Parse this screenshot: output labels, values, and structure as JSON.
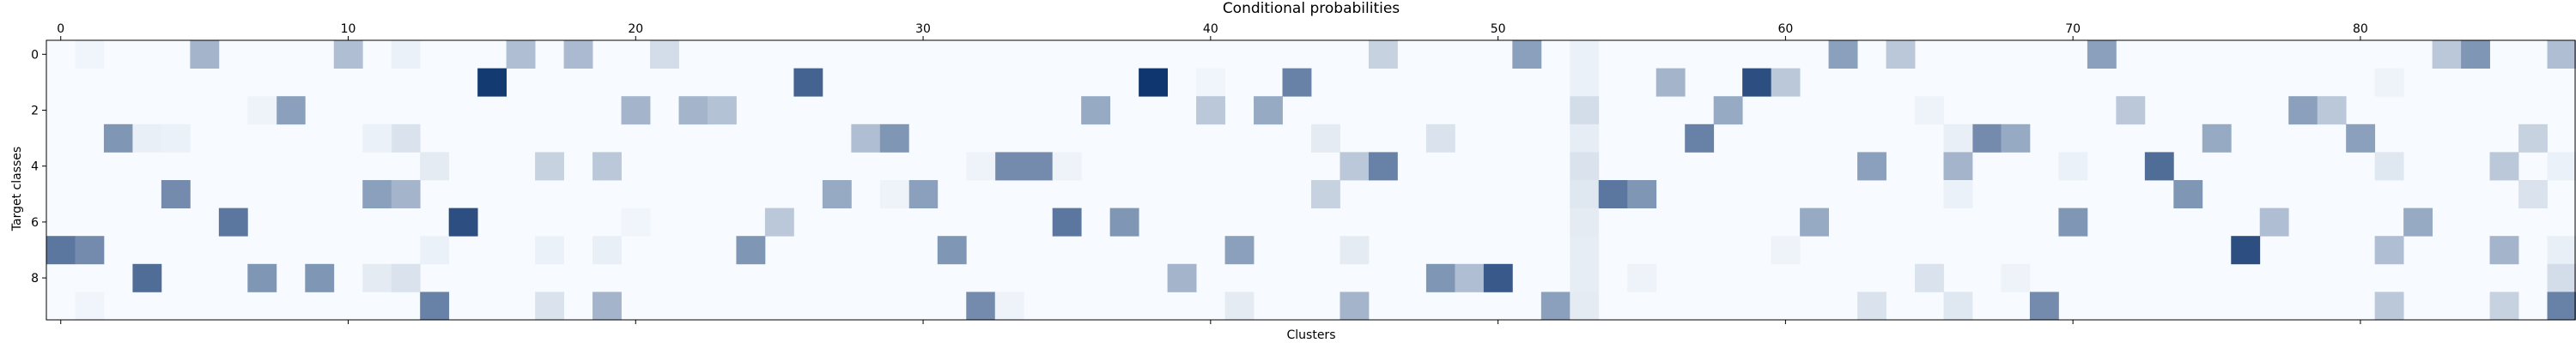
{
  "chart_data": {
    "type": "heatmap",
    "title": "Conditional probabilities",
    "xlabel": "Clusters",
    "ylabel": "Target classes",
    "n_cols": 88,
    "n_rows": 10,
    "x_ticks": [
      0,
      10,
      20,
      30,
      40,
      50,
      60,
      70,
      80
    ],
    "y_ticks": [
      0,
      2,
      4,
      6,
      8
    ],
    "x_ticks_position": "top-and-bottom",
    "colormap": "Blues",
    "value_range": [
      0,
      1
    ],
    "colors": {
      "low": "#f7fbff",
      "high": "#08306b"
    },
    "cells": [
      {
        "r": 0,
        "c": 5,
        "v": 0.35
      },
      {
        "r": 0,
        "c": 10,
        "v": 0.3
      },
      {
        "r": 0,
        "c": 16,
        "v": 0.3
      },
      {
        "r": 0,
        "c": 18,
        "v": 0.32
      },
      {
        "r": 0,
        "c": 21,
        "v": 0.15
      },
      {
        "r": 0,
        "c": 46,
        "v": 0.2
      },
      {
        "r": 0,
        "c": 51,
        "v": 0.45
      },
      {
        "r": 0,
        "c": 53,
        "v": 0.05
      },
      {
        "r": 0,
        "c": 62,
        "v": 0.45
      },
      {
        "r": 0,
        "c": 64,
        "v": 0.25
      },
      {
        "r": 0,
        "c": 71,
        "v": 0.45
      },
      {
        "r": 0,
        "c": 83,
        "v": 0.25
      },
      {
        "r": 0,
        "c": 84,
        "v": 0.5
      },
      {
        "r": 0,
        "c": 87,
        "v": 0.3
      },
      {
        "r": 0,
        "c": 1,
        "v": 0.03
      },
      {
        "r": 0,
        "c": 12,
        "v": 0.05
      },
      {
        "r": 1,
        "c": 15,
        "v": 0.95
      },
      {
        "r": 1,
        "c": 26,
        "v": 0.75
      },
      {
        "r": 1,
        "c": 38,
        "v": 0.97
      },
      {
        "r": 1,
        "c": 43,
        "v": 0.6
      },
      {
        "r": 1,
        "c": 56,
        "v": 0.35
      },
      {
        "r": 1,
        "c": 59,
        "v": 0.85
      },
      {
        "r": 1,
        "c": 60,
        "v": 0.25
      },
      {
        "r": 1,
        "c": 53,
        "v": 0.05
      },
      {
        "r": 1,
        "c": 81,
        "v": 0.04
      },
      {
        "r": 1,
        "c": 40,
        "v": 0.03
      },
      {
        "r": 2,
        "c": 8,
        "v": 0.45
      },
      {
        "r": 2,
        "c": 20,
        "v": 0.35
      },
      {
        "r": 2,
        "c": 22,
        "v": 0.35
      },
      {
        "r": 2,
        "c": 23,
        "v": 0.28
      },
      {
        "r": 2,
        "c": 36,
        "v": 0.4
      },
      {
        "r": 2,
        "c": 40,
        "v": 0.25
      },
      {
        "r": 2,
        "c": 42,
        "v": 0.4
      },
      {
        "r": 2,
        "c": 53,
        "v": 0.15
      },
      {
        "r": 2,
        "c": 58,
        "v": 0.4
      },
      {
        "r": 2,
        "c": 72,
        "v": 0.25
      },
      {
        "r": 2,
        "c": 78,
        "v": 0.45
      },
      {
        "r": 2,
        "c": 79,
        "v": 0.25
      },
      {
        "r": 2,
        "c": 7,
        "v": 0.04
      },
      {
        "r": 2,
        "c": 65,
        "v": 0.04
      },
      {
        "r": 3,
        "c": 2,
        "v": 0.5
      },
      {
        "r": 3,
        "c": 3,
        "v": 0.06
      },
      {
        "r": 3,
        "c": 4,
        "v": 0.05
      },
      {
        "r": 3,
        "c": 12,
        "v": 0.12
      },
      {
        "r": 3,
        "c": 28,
        "v": 0.3
      },
      {
        "r": 3,
        "c": 29,
        "v": 0.5
      },
      {
        "r": 3,
        "c": 44,
        "v": 0.08
      },
      {
        "r": 3,
        "c": 48,
        "v": 0.12
      },
      {
        "r": 3,
        "c": 53,
        "v": 0.07
      },
      {
        "r": 3,
        "c": 57,
        "v": 0.6
      },
      {
        "r": 3,
        "c": 67,
        "v": 0.55
      },
      {
        "r": 3,
        "c": 68,
        "v": 0.4
      },
      {
        "r": 3,
        "c": 75,
        "v": 0.4
      },
      {
        "r": 3,
        "c": 80,
        "v": 0.45
      },
      {
        "r": 3,
        "c": 86,
        "v": 0.2
      },
      {
        "r": 3,
        "c": 11,
        "v": 0.05
      },
      {
        "r": 3,
        "c": 66,
        "v": 0.06
      },
      {
        "r": 4,
        "c": 13,
        "v": 0.08
      },
      {
        "r": 4,
        "c": 17,
        "v": 0.2
      },
      {
        "r": 4,
        "c": 19,
        "v": 0.25
      },
      {
        "r": 4,
        "c": 33,
        "v": 0.55
      },
      {
        "r": 4,
        "c": 34,
        "v": 0.55
      },
      {
        "r": 4,
        "c": 45,
        "v": 0.25
      },
      {
        "r": 4,
        "c": 46,
        "v": 0.6
      },
      {
        "r": 4,
        "c": 53,
        "v": 0.12
      },
      {
        "r": 4,
        "c": 63,
        "v": 0.45
      },
      {
        "r": 4,
        "c": 66,
        "v": 0.35
      },
      {
        "r": 4,
        "c": 73,
        "v": 0.7
      },
      {
        "r": 4,
        "c": 81,
        "v": 0.1
      },
      {
        "r": 4,
        "c": 85,
        "v": 0.25
      },
      {
        "r": 4,
        "c": 87,
        "v": 0.05
      },
      {
        "r": 4,
        "c": 32,
        "v": 0.04
      },
      {
        "r": 4,
        "c": 70,
        "v": 0.05
      },
      {
        "r": 4,
        "c": 35,
        "v": 0.04
      },
      {
        "r": 5,
        "c": 4,
        "v": 0.55
      },
      {
        "r": 5,
        "c": 11,
        "v": 0.45
      },
      {
        "r": 5,
        "c": 12,
        "v": 0.35
      },
      {
        "r": 5,
        "c": 27,
        "v": 0.4
      },
      {
        "r": 5,
        "c": 30,
        "v": 0.45
      },
      {
        "r": 5,
        "c": 44,
        "v": 0.2
      },
      {
        "r": 5,
        "c": 53,
        "v": 0.1
      },
      {
        "r": 5,
        "c": 54,
        "v": 0.65
      },
      {
        "r": 5,
        "c": 55,
        "v": 0.5
      },
      {
        "r": 5,
        "c": 74,
        "v": 0.5
      },
      {
        "r": 5,
        "c": 86,
        "v": 0.12
      },
      {
        "r": 5,
        "c": 29,
        "v": 0.04
      },
      {
        "r": 5,
        "c": 66,
        "v": 0.05
      },
      {
        "r": 6,
        "c": 6,
        "v": 0.65
      },
      {
        "r": 6,
        "c": 14,
        "v": 0.85
      },
      {
        "r": 6,
        "c": 25,
        "v": 0.25
      },
      {
        "r": 6,
        "c": 35,
        "v": 0.65
      },
      {
        "r": 6,
        "c": 37,
        "v": 0.5
      },
      {
        "r": 6,
        "c": 53,
        "v": 0.08
      },
      {
        "r": 6,
        "c": 61,
        "v": 0.4
      },
      {
        "r": 6,
        "c": 70,
        "v": 0.5
      },
      {
        "r": 6,
        "c": 77,
        "v": 0.3
      },
      {
        "r": 6,
        "c": 82,
        "v": 0.4
      },
      {
        "r": 6,
        "c": 20,
        "v": 0.03
      },
      {
        "r": 7,
        "c": 0,
        "v": 0.65
      },
      {
        "r": 7,
        "c": 1,
        "v": 0.55
      },
      {
        "r": 7,
        "c": 13,
        "v": 0.05
      },
      {
        "r": 7,
        "c": 17,
        "v": 0.05
      },
      {
        "r": 7,
        "c": 19,
        "v": 0.06
      },
      {
        "r": 7,
        "c": 24,
        "v": 0.5
      },
      {
        "r": 7,
        "c": 31,
        "v": 0.5
      },
      {
        "r": 7,
        "c": 41,
        "v": 0.45
      },
      {
        "r": 7,
        "c": 45,
        "v": 0.08
      },
      {
        "r": 7,
        "c": 53,
        "v": 0.07
      },
      {
        "r": 7,
        "c": 76,
        "v": 0.85
      },
      {
        "r": 7,
        "c": 81,
        "v": 0.3
      },
      {
        "r": 7,
        "c": 85,
        "v": 0.35
      },
      {
        "r": 7,
        "c": 87,
        "v": 0.06
      },
      {
        "r": 7,
        "c": 60,
        "v": 0.04
      },
      {
        "r": 8,
        "c": 3,
        "v": 0.7
      },
      {
        "r": 8,
        "c": 7,
        "v": 0.5
      },
      {
        "r": 8,
        "c": 9,
        "v": 0.5
      },
      {
        "r": 8,
        "c": 11,
        "v": 0.08
      },
      {
        "r": 8,
        "c": 12,
        "v": 0.12
      },
      {
        "r": 8,
        "c": 39,
        "v": 0.35
      },
      {
        "r": 8,
        "c": 48,
        "v": 0.5
      },
      {
        "r": 8,
        "c": 49,
        "v": 0.3
      },
      {
        "r": 8,
        "c": 50,
        "v": 0.8
      },
      {
        "r": 8,
        "c": 53,
        "v": 0.07
      },
      {
        "r": 8,
        "c": 55,
        "v": 0.04
      },
      {
        "r": 8,
        "c": 65,
        "v": 0.12
      },
      {
        "r": 8,
        "c": 87,
        "v": 0.15
      },
      {
        "r": 8,
        "c": 68,
        "v": 0.04
      },
      {
        "r": 9,
        "c": 13,
        "v": 0.6
      },
      {
        "r": 9,
        "c": 17,
        "v": 0.12
      },
      {
        "r": 9,
        "c": 19,
        "v": 0.35
      },
      {
        "r": 9,
        "c": 32,
        "v": 0.55
      },
      {
        "r": 9,
        "c": 41,
        "v": 0.08
      },
      {
        "r": 9,
        "c": 45,
        "v": 0.35
      },
      {
        "r": 9,
        "c": 52,
        "v": 0.45
      },
      {
        "r": 9,
        "c": 53,
        "v": 0.08
      },
      {
        "r": 9,
        "c": 63,
        "v": 0.12
      },
      {
        "r": 9,
        "c": 66,
        "v": 0.1
      },
      {
        "r": 9,
        "c": 69,
        "v": 0.55
      },
      {
        "r": 9,
        "c": 81,
        "v": 0.25
      },
      {
        "r": 9,
        "c": 85,
        "v": 0.2
      },
      {
        "r": 9,
        "c": 87,
        "v": 0.6
      },
      {
        "r": 9,
        "c": 33,
        "v": 0.04
      },
      {
        "r": 9,
        "c": 1,
        "v": 0.03
      }
    ]
  }
}
